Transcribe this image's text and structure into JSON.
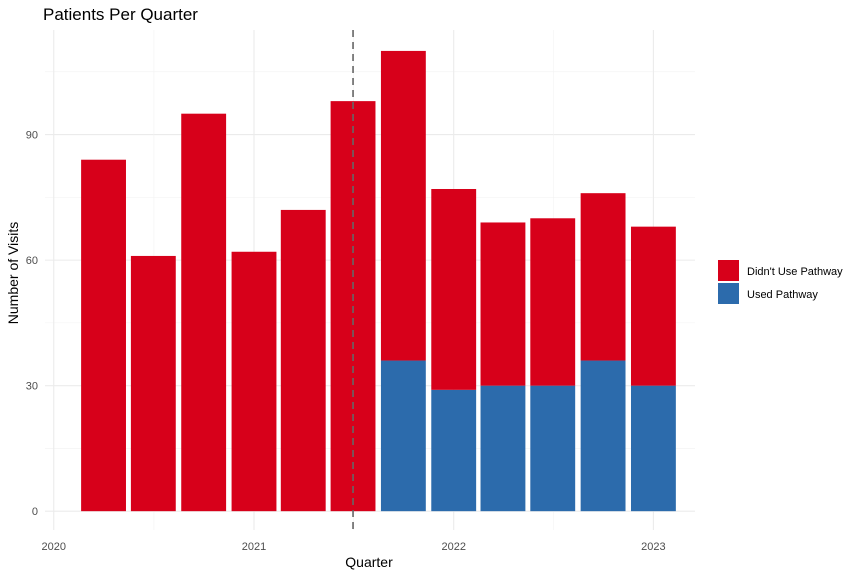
{
  "chart_data": {
    "type": "bar",
    "stacked": true,
    "title": "Patients Per Quarter",
    "xlabel": "Quarter",
    "ylabel": "Number of Visits",
    "x_axis": {
      "type": "date",
      "ticks": [
        "2020",
        "2021",
        "2022",
        "2023"
      ]
    },
    "y_axis": {
      "ticks": [
        0,
        30,
        60,
        90
      ],
      "range": [
        -4.5,
        115
      ]
    },
    "grid": true,
    "legend_position": "right",
    "reference_line": {
      "x": "2021-07-01",
      "style": "dashed",
      "color": "#666666"
    },
    "categories": [
      "2020-04-01",
      "2020-07-01",
      "2020-10-01",
      "2021-01-01",
      "2021-04-01",
      "2021-07-01",
      "2021-10-01",
      "2022-01-01",
      "2022-04-01",
      "2022-07-01",
      "2022-10-01",
      "2023-01-01"
    ],
    "series": [
      {
        "name": "Used Pathway",
        "color": "#2C6BAC",
        "values": [
          0,
          0,
          0,
          0,
          0,
          0,
          36,
          29,
          30,
          30,
          36,
          30
        ]
      },
      {
        "name": "Didn't Use Pathway",
        "color": "#D7001A",
        "values": [
          84,
          61,
          95,
          62,
          72,
          98,
          74,
          48,
          39,
          40,
          40,
          38
        ]
      }
    ],
    "legend": [
      {
        "name": "Didn't Use Pathway",
        "color": "#D7001A"
      },
      {
        "name": "Used Pathway",
        "color": "#2C6BAC"
      }
    ]
  }
}
